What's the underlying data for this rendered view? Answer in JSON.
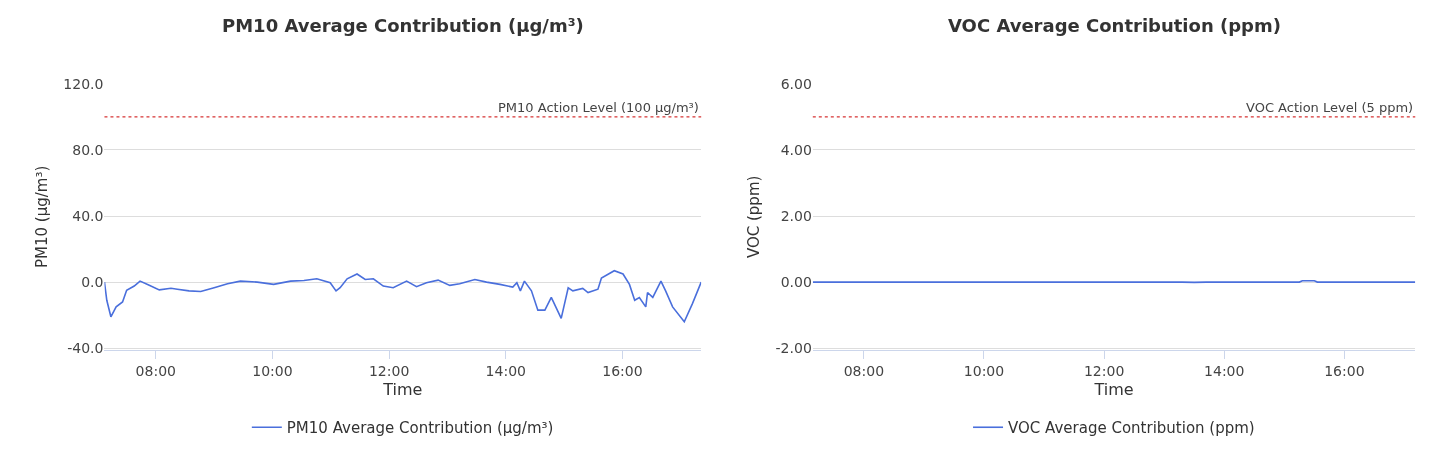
{
  "chart_data": [
    {
      "type": "line",
      "title": "PM10 Average Contribution (µg/m³)",
      "xlabel": "Time",
      "ylabel": "PM10 (µg/m³)",
      "legend": "bottom",
      "grid": "y",
      "xlim": [
        7.12,
        17.35
      ],
      "xticks": [
        {
          "value": 8,
          "label": "08:00"
        },
        {
          "value": 10,
          "label": "10:00"
        },
        {
          "value": 12,
          "label": "12:00"
        },
        {
          "value": 14,
          "label": "14:00"
        },
        {
          "value": 16,
          "label": "16:00"
        }
      ],
      "ylim": [
        -41,
        120
      ],
      "yticks": [
        {
          "value": -40,
          "label": "-40.0"
        },
        {
          "value": 0,
          "label": "0.0"
        },
        {
          "value": 40,
          "label": "40.0"
        },
        {
          "value": 80,
          "label": "80.0"
        },
        {
          "value": 120,
          "label": "120.0"
        }
      ],
      "ref_lines": [
        {
          "axis": "y",
          "value": 100,
          "label": "PM10 Action Level (100 µg/m³)",
          "color": "#cc0000",
          "line_style": "dotted"
        }
      ],
      "series": [
        {
          "name": "PM10 Average Contribution (µg/m³)",
          "color": "#4a6fdc",
          "x": [
            7.12,
            7.16,
            7.23,
            7.32,
            7.43,
            7.5,
            7.63,
            7.73,
            7.86,
            8.06,
            8.26,
            8.37,
            8.57,
            8.77,
            9.0,
            9.23,
            9.45,
            9.74,
            10.02,
            10.31,
            10.54,
            10.76,
            10.99,
            11.09,
            11.16,
            11.28,
            11.45,
            11.59,
            11.73,
            11.9,
            12.07,
            12.3,
            12.47,
            12.64,
            12.84,
            13.04,
            13.21,
            13.47,
            13.67,
            13.9,
            14.12,
            14.19,
            14.25,
            14.32,
            14.44,
            14.55,
            14.67,
            14.78,
            14.95,
            15.07,
            15.15,
            15.32,
            15.41,
            15.58,
            15.64,
            15.86,
            16.01,
            16.12,
            16.21,
            16.29,
            16.4,
            16.43,
            16.52,
            16.66,
            16.74,
            16.86,
            17.06,
            17.2,
            17.35
          ],
          "values": [
            0,
            -11,
            -21,
            -15,
            -12,
            -5,
            -2.4,
            0.6,
            -1.4,
            -4.7,
            -3.7,
            -4.3,
            -5.3,
            -5.7,
            -3.4,
            -1,
            0.6,
            0,
            -1.4,
            0.6,
            1,
            2,
            -0.4,
            -5.3,
            -3.4,
            2,
            4.9,
            1.6,
            2,
            -2.4,
            -3.4,
            0.6,
            -2.8,
            -0.4,
            1.2,
            -2,
            -1,
            1.6,
            0,
            -1.4,
            -3,
            -0.4,
            -5.3,
            0.6,
            -5.3,
            -17,
            -17,
            -9.3,
            -22,
            -3.4,
            -5.3,
            -3.8,
            -6.3,
            -4.3,
            2.5,
            6.9,
            4.9,
            -1.4,
            -11,
            -9.3,
            -15,
            -6.3,
            -9.3,
            0.6,
            -5.3,
            -15,
            -24,
            -13,
            0
          ]
        }
      ]
    },
    {
      "type": "line",
      "title": "VOC Average Contribution (ppm)",
      "xlabel": "Time",
      "ylabel": "VOC (ppm)",
      "legend": "bottom",
      "grid": "y",
      "xlim": [
        7.15,
        17.18
      ],
      "xticks": [
        {
          "value": 8,
          "label": "08:00"
        },
        {
          "value": 10,
          "label": "10:00"
        },
        {
          "value": 12,
          "label": "12:00"
        },
        {
          "value": 14,
          "label": "14:00"
        },
        {
          "value": 16,
          "label": "16:00"
        }
      ],
      "ylim": [
        -2.05,
        6
      ],
      "yticks": [
        {
          "value": -2,
          "label": "-2.00"
        },
        {
          "value": 0,
          "label": "0.00"
        },
        {
          "value": 2,
          "label": "2.00"
        },
        {
          "value": 4,
          "label": "4.00"
        },
        {
          "value": 6,
          "label": "6.00"
        }
      ],
      "ref_lines": [
        {
          "axis": "y",
          "value": 5,
          "label": "VOC Action Level (5 ppm)",
          "color": "#cc0000",
          "line_style": "dotted"
        }
      ],
      "series": [
        {
          "name": "VOC Average Contribution (ppm)",
          "color": "#4a6fdc",
          "x": [
            7.15,
            10,
            13.3,
            13.5,
            13.7,
            15.25,
            15.3,
            15.5,
            15.55,
            17.18
          ],
          "values": [
            0,
            0,
            0,
            -0.01,
            0,
            0,
            0.04,
            0.04,
            0,
            0
          ]
        }
      ]
    }
  ]
}
